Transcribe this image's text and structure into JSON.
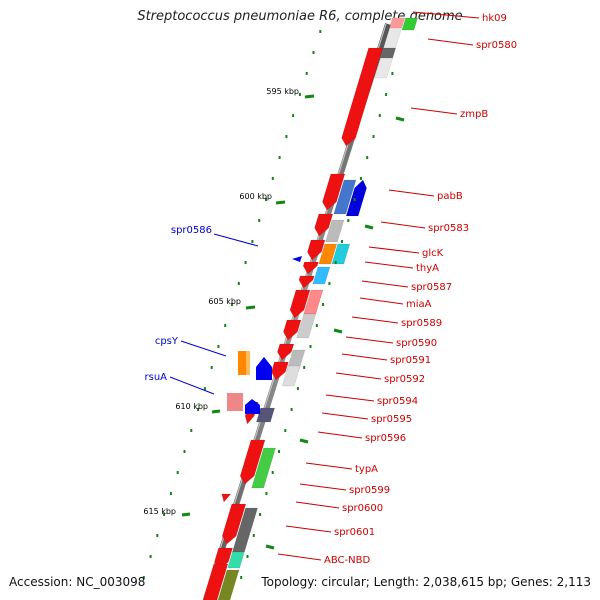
{
  "title": "Streptococcus pneumoniae R6, complete genome",
  "accession": "Accession: NC_003098",
  "topology": "Topology: circular; Length: 2,038,615 bp; Genes: 2,113",
  "colors": {
    "forward_label": "#cc0000",
    "reverse_label": "#0000cc",
    "tick": "#118811",
    "backbone": "#777777"
  },
  "ticks": [
    {
      "label": "595 kbp"
    },
    {
      "label": "600 kbp"
    },
    {
      "label": "605 kbp"
    },
    {
      "label": "610 kbp"
    },
    {
      "label": "615 kbp"
    }
  ],
  "gene_labels_right": [
    "hk09",
    "spr0580",
    "zmpB",
    "pabB",
    "spr0583",
    "glcK",
    "thyA",
    "spr0587",
    "miaA",
    "spr0589",
    "spr0590",
    "spr0591",
    "spr0592",
    "spr0594",
    "spr0595",
    "spr0596",
    "typA",
    "spr0599",
    "spr0600",
    "spr0601",
    "ABC-NBD"
  ],
  "gene_labels_left": [
    "spr0586",
    "cpsY",
    "rsuA"
  ],
  "features": [
    {
      "lane": 0,
      "start": 30,
      "end": 128,
      "color": "#ee1111",
      "dir": "down"
    },
    {
      "lane": 1,
      "start": 0,
      "end": 60,
      "color": "#e8e8e8",
      "dir": "none"
    },
    {
      "lane": 2,
      "start": 0,
      "end": 12,
      "color": "#33cc33",
      "dir": "none"
    },
    {
      "lane": 1,
      "start": 0,
      "end": 10,
      "color": "#ff9999",
      "dir": "none"
    },
    {
      "lane": 1,
      "start": 30,
      "end": 40,
      "color": "#666666",
      "dir": "none"
    },
    {
      "lane": 0,
      "start": 156,
      "end": 192,
      "color": "#ee1111",
      "dir": "down"
    },
    {
      "lane": 1,
      "start": 162,
      "end": 196,
      "color": "#4477cc",
      "dir": "none"
    },
    {
      "lane": 2,
      "start": 162,
      "end": 198,
      "color": "#0000dd",
      "dir": "up"
    },
    {
      "lane": 0,
      "start": 196,
      "end": 218,
      "color": "#ee1111",
      "dir": "down"
    },
    {
      "lane": 1,
      "start": 202,
      "end": 224,
      "color": "#bbbbbb",
      "dir": "none"
    },
    {
      "lane": 0,
      "start": 222,
      "end": 242,
      "color": "#ee1111",
      "dir": "down"
    },
    {
      "lane": 1,
      "start": 226,
      "end": 246,
      "color": "#ff8800",
      "dir": "none"
    },
    {
      "lane": 2,
      "start": 226,
      "end": 246,
      "color": "#22ccdd",
      "dir": "none"
    },
    {
      "lane": 0,
      "start": 244,
      "end": 256,
      "color": "#ee1111",
      "dir": "down"
    },
    {
      "lane": 1,
      "start": 249,
      "end": 266,
      "color": "#33bbff",
      "dir": "none"
    },
    {
      "lane": 0,
      "start": 258,
      "end": 270,
      "color": "#ee1111",
      "dir": "down"
    },
    {
      "lane": 0,
      "start": 272,
      "end": 300,
      "color": "#ee1111",
      "dir": "down"
    },
    {
      "lane": 1,
      "start": 272,
      "end": 296,
      "color": "#ff8888",
      "dir": "none"
    },
    {
      "lane": 1,
      "start": 296,
      "end": 320,
      "color": "#cccccc",
      "dir": "none"
    },
    {
      "lane": 0,
      "start": 302,
      "end": 322,
      "color": "#ee1111",
      "dir": "down"
    },
    {
      "lane": 0,
      "start": 326,
      "end": 342,
      "color": "#ee1111",
      "dir": "down"
    },
    {
      "lane": 1,
      "start": 332,
      "end": 354,
      "color": "#bbbbbb",
      "dir": "none"
    },
    {
      "lane": 0,
      "start": 344,
      "end": 362,
      "color": "#ee1111",
      "dir": "down"
    },
    {
      "lane": 1,
      "start": 348,
      "end": 368,
      "color": "#dddddd",
      "dir": "none"
    },
    {
      "lane": -1,
      "start": 384,
      "end": 392,
      "color": "#ee1111",
      "dir": "down"
    },
    {
      "lane": -1,
      "start": 395,
      "end": 406,
      "color": "#ee1111",
      "dir": "down"
    },
    {
      "lane": 0,
      "start": 390,
      "end": 404,
      "color": "#555577",
      "dir": "none"
    },
    {
      "lane": 0,
      "start": 422,
      "end": 466,
      "color": "#ee1111",
      "dir": "down"
    },
    {
      "lane": 1,
      "start": 430,
      "end": 470,
      "color": "#44cc44",
      "dir": "none"
    },
    {
      "lane": -1,
      "start": 476,
      "end": 484,
      "color": "#ee1111",
      "dir": "down"
    },
    {
      "lane": 0,
      "start": 486,
      "end": 526,
      "color": "#ee1111",
      "dir": "down"
    },
    {
      "lane": 1,
      "start": 490,
      "end": 534,
      "color": "#666666",
      "dir": "none"
    },
    {
      "lane": 1,
      "start": 534,
      "end": 550,
      "color": "#33ddaa",
      "dir": "none"
    },
    {
      "lane": 0,
      "start": 530,
      "end": 552,
      "color": "#ee1111",
      "dir": "down"
    },
    {
      "lane": 0,
      "start": 546,
      "end": 600,
      "color": "#ee1111",
      "dir": "none"
    },
    {
      "lane": 1,
      "start": 552,
      "end": 600,
      "color": "#778822",
      "dir": "none"
    }
  ]
}
